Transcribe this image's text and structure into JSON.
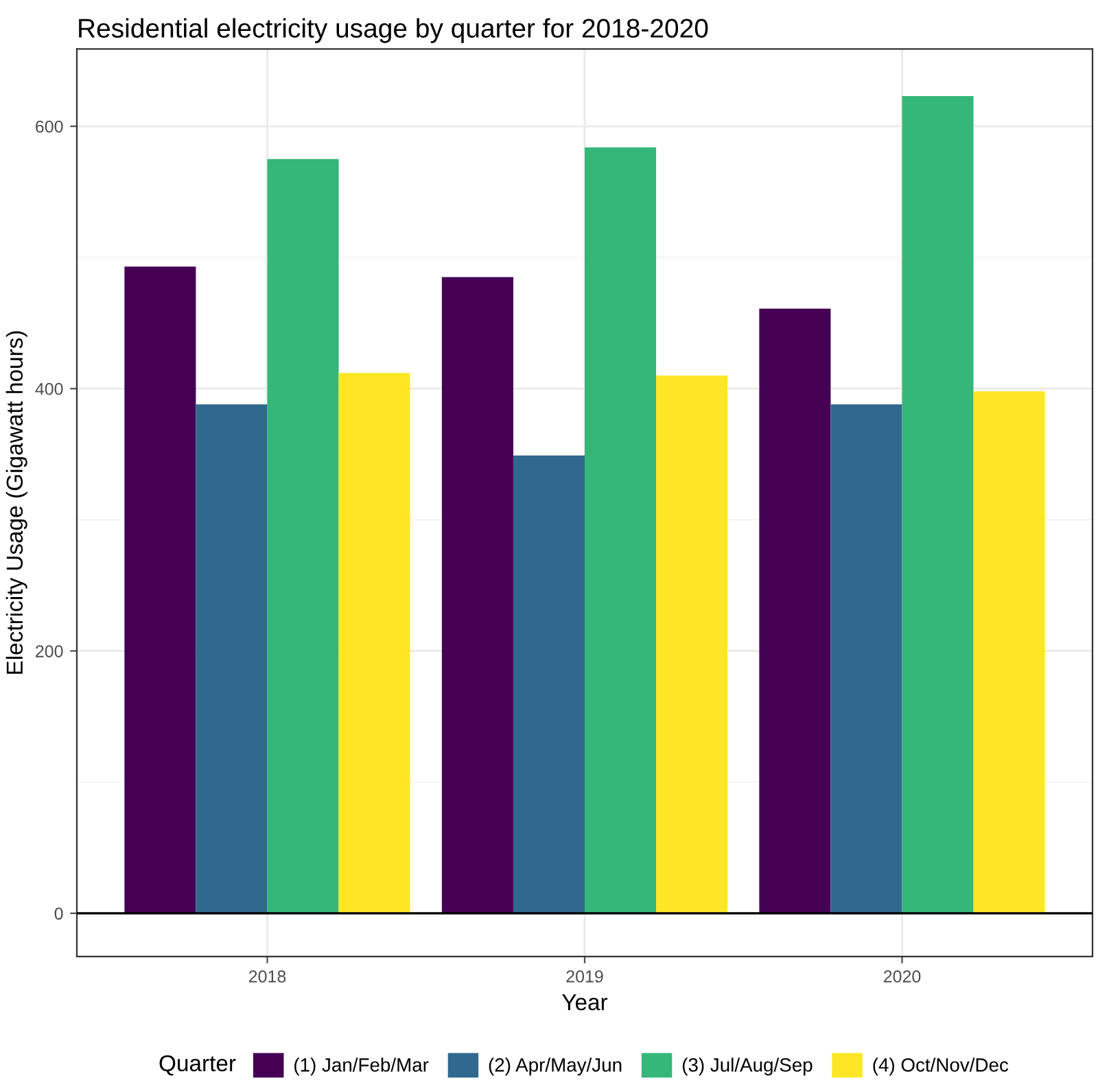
{
  "chart_data": {
    "type": "bar",
    "title": "Residential electricity usage by quarter for 2018-2020",
    "xlabel": "Year",
    "ylabel": "Electricity Usage (Gigawatt hours)",
    "legend_title": "Quarter",
    "categories": [
      "2018",
      "2019",
      "2020"
    ],
    "series": [
      {
        "name": "(1) Jan/Feb/Mar",
        "color": "#440154",
        "values": [
          493,
          485,
          461
        ]
      },
      {
        "name": "(2) Apr/May/Jun",
        "color": "#31688e",
        "values": [
          388,
          349,
          388
        ]
      },
      {
        "name": "(3) Jul/Aug/Sep",
        "color": "#35b779",
        "values": [
          575,
          584,
          623
        ]
      },
      {
        "name": "(4) Oct/Nov/Dec",
        "color": "#fde725",
        "values": [
          412,
          410,
          398
        ]
      }
    ],
    "ylim": [
      -33,
      659
    ],
    "yticks": [
      0,
      {
        "value": 100,
        "label": null
      },
      200,
      {
        "value": 300,
        "label": null
      },
      400,
      {
        "value": 500,
        "label": null
      },
      600
    ],
    "ref_lines": [
      {
        "axis": "y",
        "value": 0,
        "color": "#000000",
        "line_style": "solid"
      }
    ],
    "grid": true,
    "legend": "bottom"
  }
}
